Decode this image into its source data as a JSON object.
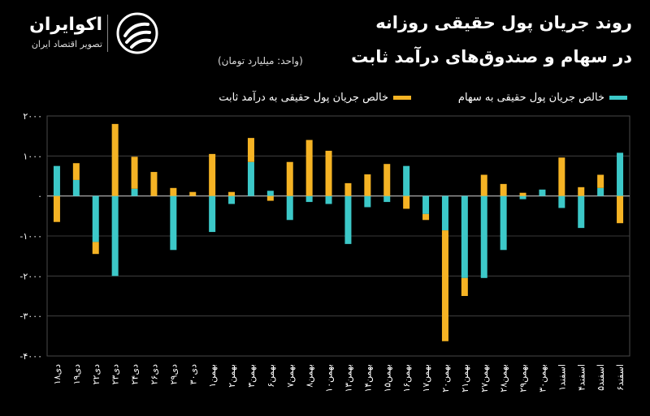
{
  "header": {
    "brand_name": "اکوایران",
    "brand_tagline": "تصویر اقتصاد ایران",
    "title_line1": "روند جریان پول حقیقی روزانه",
    "title_line2": "در سهام و صندوق‌های درآمد ثابت",
    "unit": "(واحد: میلیارد تومان)"
  },
  "colors": {
    "background": "#000000",
    "teal": "#3cc8c8",
    "orange": "#f5b324",
    "grid": "#4a4a4a",
    "axis": "#ffffff"
  },
  "chart_data": {
    "type": "bar",
    "stacked": true,
    "ylim": [
      -4000,
      2000
    ],
    "yticks": [
      2000,
      1000,
      0,
      -1000,
      -2000,
      -3000,
      -4000
    ],
    "ytick_labels": [
      "۲۰۰۰",
      "۱۰۰۰",
      "۰",
      "-۱۰۰۰",
      "-۲۰۰۰",
      "-۳۰۰۰",
      "-۴۰۰۰"
    ],
    "grid": true,
    "legend_position": "top",
    "categories": [
      "۱۸دی",
      "۱۹دی",
      "۲۲دی",
      "۲۳دی",
      "۲۴دی",
      "۲۶دی",
      "۲۹دی",
      "۳۰دی",
      "۱بهمن",
      "۲بهمن",
      "۳بهمن",
      "۶بهمن",
      "۷بهمن",
      "۸بهمن",
      "۱۰بهمن",
      "۱۳بهمن",
      "۱۴بهمن",
      "۱۵بهمن",
      "۱۶بهمن",
      "۱۷بهمن",
      "۲۰بهمن",
      "۲۱بهمن",
      "۲۷بهمن",
      "۲۸بهمن",
      "۲۹بهمن",
      "۳۰بهمن",
      "۱اسفند",
      "۴اسفند",
      "۵اسفند",
      "۶اسفند"
    ],
    "series": [
      {
        "name": "خالص جریان پول حقیقی به سهام",
        "color": "#3cc8c8",
        "values": [
          750,
          400,
          -1150,
          -2000,
          180,
          0,
          -1350,
          0,
          -900,
          -200,
          850,
          130,
          -600,
          -150,
          -200,
          -1200,
          -280,
          -150,
          750,
          -450,
          -860,
          -2050,
          -2050,
          -1350,
          -80,
          160,
          -300,
          -800,
          200,
          1080
        ]
      },
      {
        "name": "خالص جریان پول حقیقی به درآمد ثابت",
        "color": "#f5b324",
        "values": [
          -650,
          420,
          -300,
          1800,
          800,
          600,
          200,
          100,
          1050,
          100,
          600,
          -120,
          850,
          1400,
          1130,
          320,
          540,
          800,
          -320,
          -150,
          -2770,
          -450,
          530,
          300,
          80,
          0,
          960,
          220,
          330,
          -680
        ]
      }
    ]
  }
}
